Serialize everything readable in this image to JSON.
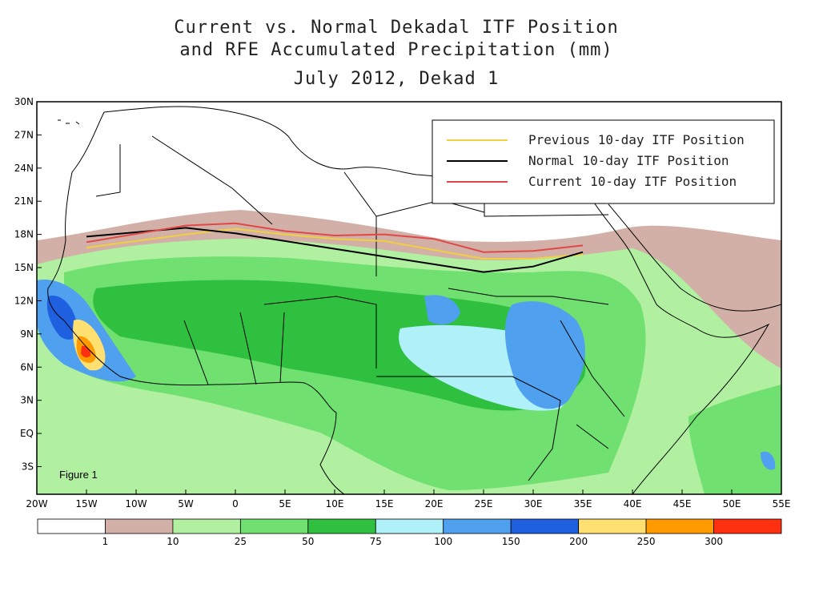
{
  "title": {
    "line1": "Current vs. Normal Dekadal ITF Position",
    "line2": "and RFE Accumulated Precipitation (mm)",
    "line3": "July 2012, Dekad 1"
  },
  "figure_label": "Figure 1",
  "axes": {
    "lat_labels": [
      "30N",
      "27N",
      "24N",
      "21N",
      "18N",
      "15N",
      "12N",
      "9N",
      "6N",
      "3N",
      "EQ",
      "3S"
    ],
    "lon_labels": [
      "20W",
      "15W",
      "10W",
      "5W",
      "0",
      "5E",
      "10E",
      "15E",
      "20E",
      "25E",
      "30E",
      "35E",
      "40E",
      "45E",
      "50E",
      "55E"
    ]
  },
  "legend": {
    "items": [
      {
        "label": "Previous 10-day ITF Position",
        "color": "#f0d040"
      },
      {
        "label": "Normal 10-day ITF Position",
        "color": "#000000"
      },
      {
        "label": "Current 10-day ITF Position",
        "color": "#e04848"
      }
    ]
  },
  "colorbar": {
    "colors": [
      "#ffffff",
      "#d2b0a8",
      "#b0f0a0",
      "#70e070",
      "#30c040",
      "#b0f0f8",
      "#50a0f0",
      "#1e60e0",
      "#ffe070",
      "#ff9a00",
      "#ff3010"
    ],
    "labels": [
      "1",
      "10",
      "25",
      "50",
      "75",
      "100",
      "150",
      "200",
      "250",
      "300"
    ]
  },
  "itf_lines": {
    "previous": [
      [
        -15,
        16.8
      ],
      [
        -5,
        18
      ],
      [
        0,
        18.5
      ],
      [
        5,
        18
      ],
      [
        10,
        17.6
      ],
      [
        15,
        17.4
      ],
      [
        20,
        16.6
      ],
      [
        25,
        15.8
      ],
      [
        30,
        15.8
      ],
      [
        35,
        16.2
      ]
    ],
    "normal": [
      [
        -15,
        17.8
      ],
      [
        -5,
        18.6
      ],
      [
        0,
        18.1
      ],
      [
        5,
        17.4
      ],
      [
        10,
        16.7
      ],
      [
        15,
        16
      ],
      [
        20,
        15.3
      ],
      [
        25,
        14.6
      ],
      [
        30,
        15.1
      ],
      [
        35,
        16.4
      ]
    ],
    "current": [
      [
        -15,
        17.3
      ],
      [
        -5,
        18.8
      ],
      [
        0,
        19
      ],
      [
        5,
        18.3
      ],
      [
        10,
        17.9
      ],
      [
        15,
        18
      ],
      [
        20,
        17.6
      ],
      [
        25,
        16.4
      ],
      [
        30,
        16.5
      ],
      [
        35,
        17
      ]
    ]
  }
}
